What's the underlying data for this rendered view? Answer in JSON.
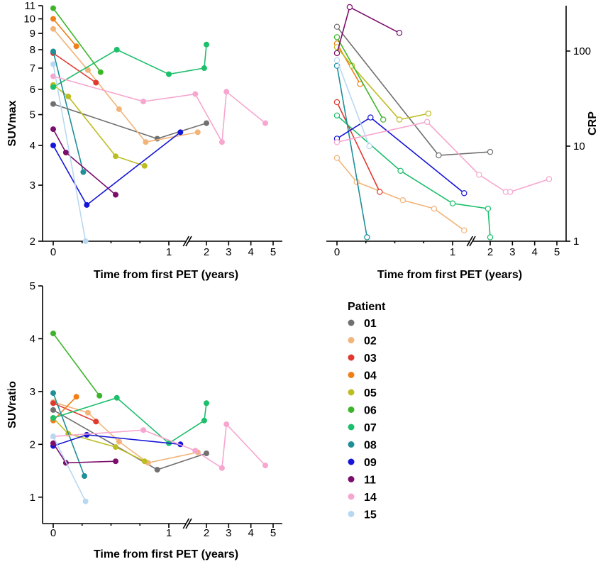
{
  "legend": {
    "title": "Patient",
    "entries": [
      {
        "label": "01",
        "color": "#707070"
      },
      {
        "label": "02",
        "color": "#f2b479"
      },
      {
        "label": "03",
        "color": "#e03a2f"
      },
      {
        "label": "04",
        "color": "#f07f16"
      },
      {
        "label": "05",
        "color": "#bcbd22"
      },
      {
        "label": "06",
        "color": "#3cb52a"
      },
      {
        "label": "07",
        "color": "#1cbf6b"
      },
      {
        "label": "08",
        "color": "#1f8f98"
      },
      {
        "label": "09",
        "color": "#1515d8"
      },
      {
        "label": "11",
        "color": "#7b0e6b"
      },
      {
        "label": "14",
        "color": "#f7a6cf"
      },
      {
        "label": "15",
        "color": "#b8d8f2"
      }
    ]
  },
  "chart_data": [
    {
      "type": "line",
      "ylabel": "SUVmax",
      "xlabel": "Time from first PET (years)",
      "y_scale": "log",
      "ylim": [
        2,
        11
      ],
      "y_ticks": [
        "2",
        "3",
        "4",
        "5",
        "6",
        "7",
        "8",
        "9",
        "10",
        "11"
      ],
      "x_axis": "broken: 0-1 then 2-5 (years)",
      "x_ticks": [
        "0",
        "1",
        "2",
        "3",
        "4",
        "5"
      ],
      "marker": "filled",
      "series": [
        {
          "name": "01",
          "x": [
            0,
            0.9,
            2.0
          ],
          "y": [
            5.4,
            4.2,
            4.7
          ]
        },
        {
          "name": "02",
          "x": [
            0,
            0.3,
            0.57,
            0.8,
            1.25
          ],
          "y": [
            9.3,
            6.9,
            5.2,
            4.1,
            4.4
          ]
        },
        {
          "name": "03",
          "x": [
            0,
            0.37
          ],
          "y": [
            7.8,
            6.3
          ]
        },
        {
          "name": "04",
          "x": [
            0,
            0.2
          ],
          "y": [
            10.0,
            8.2
          ]
        },
        {
          "name": "05",
          "x": [
            0,
            0.13,
            0.54,
            0.79
          ],
          "y": [
            6.2,
            5.7,
            3.7,
            3.45
          ]
        },
        {
          "name": "06",
          "x": [
            0,
            0.41
          ],
          "y": [
            10.8,
            6.8
          ]
        },
        {
          "name": "07",
          "x": [
            0,
            0.55,
            1.0,
            1.9,
            2.0
          ],
          "y": [
            6.1,
            8.0,
            6.7,
            7.0,
            8.3
          ]
        },
        {
          "name": "08",
          "x": [
            0,
            0.26
          ],
          "y": [
            7.9,
            3.3
          ]
        },
        {
          "name": "09",
          "x": [
            0,
            0.29,
            1.1
          ],
          "y": [
            4.0,
            2.6,
            4.4
          ]
        },
        {
          "name": "11",
          "x": [
            0,
            0.11,
            0.54
          ],
          "y": [
            4.5,
            3.8,
            2.8
          ]
        },
        {
          "name": "14",
          "x": [
            0,
            0.78,
            1.5,
            2.7,
            2.9,
            4.65
          ],
          "y": [
            6.6,
            5.5,
            5.8,
            4.1,
            5.9,
            4.7
          ]
        },
        {
          "name": "15",
          "x": [
            0,
            0.28
          ],
          "y": [
            7.2,
            2.0
          ]
        }
      ]
    },
    {
      "type": "line",
      "ylabel": "CRP",
      "xlabel": "Time from first PET (years)",
      "y_scale": "log",
      "ylim": [
        1,
        300
      ],
      "y_ticks": [
        "1",
        "10",
        "100"
      ],
      "y_axis_position": "right",
      "x_axis": "broken: 0-1 then 2-5 (years)",
      "x_ticks": [
        "0",
        "1",
        "2",
        "3",
        "4",
        "5"
      ],
      "marker": "open",
      "series": [
        {
          "name": "01",
          "x": [
            0,
            0.88,
            2.0
          ],
          "y": [
            180,
            8,
            8.7
          ]
        },
        {
          "name": "02",
          "x": [
            0,
            0.17,
            0.57,
            0.84,
            1.1
          ],
          "y": [
            7.5,
            4.2,
            2.7,
            2.2,
            1.3
          ]
        },
        {
          "name": "03",
          "x": [
            0,
            0.37
          ],
          "y": [
            29,
            3.3
          ]
        },
        {
          "name": "04",
          "x": [
            0,
            0.2
          ],
          "y": [
            120,
            45
          ]
        },
        {
          "name": "05",
          "x": [
            0,
            0.13,
            0.54,
            0.79
          ],
          "y": [
            110,
            70,
            19,
            22
          ]
        },
        {
          "name": "06",
          "x": [
            0,
            0.4
          ],
          "y": [
            140,
            19
          ]
        },
        {
          "name": "07",
          "x": [
            0,
            0.55,
            1.0,
            1.9,
            2.0
          ],
          "y": [
            21,
            5.5,
            2.5,
            2.2,
            1.1
          ]
        },
        {
          "name": "08",
          "x": [
            0,
            0.26
          ],
          "y": [
            70,
            1.1
          ]
        },
        {
          "name": "09",
          "x": [
            0,
            0.29,
            1.1
          ],
          "y": [
            12,
            20,
            3.2
          ]
        },
        {
          "name": "11",
          "x": [
            0,
            0.11,
            0.54
          ],
          "y": [
            95,
            290,
            155
          ]
        },
        {
          "name": "14",
          "x": [
            0,
            0.78,
            1.5,
            2.7,
            2.9,
            4.65
          ],
          "y": [
            11,
            18,
            5,
            3.3,
            3.3,
            4.5
          ]
        },
        {
          "name": "15",
          "x": [
            0,
            0.28
          ],
          "y": [
            80,
            10
          ]
        }
      ]
    },
    {
      "type": "line",
      "ylabel": "SUVratio",
      "xlabel": "Time from first PET (years)",
      "y_scale": "linear",
      "ylim": [
        0.5,
        5
      ],
      "y_ticks": [
        "1",
        "2",
        "3",
        "4",
        "5"
      ],
      "x_axis": "broken: 0-1 then 2-5 (years)",
      "x_ticks": [
        "0",
        "1",
        "2",
        "3",
        "4",
        "5"
      ],
      "marker": "filled",
      "series": [
        {
          "name": "01",
          "x": [
            0,
            0.9,
            2.0
          ],
          "y": [
            2.65,
            1.52,
            1.83
          ]
        },
        {
          "name": "02",
          "x": [
            0,
            0.3,
            0.57,
            0.82,
            1.25
          ],
          "y": [
            2.8,
            2.6,
            2.05,
            1.65,
            1.85
          ]
        },
        {
          "name": "03",
          "x": [
            0,
            0.37
          ],
          "y": [
            2.78,
            2.43
          ]
        },
        {
          "name": "04",
          "x": [
            0,
            0.2
          ],
          "y": [
            2.45,
            2.9
          ]
        },
        {
          "name": "05",
          "x": [
            0,
            0.13,
            0.54,
            0.79
          ],
          "y": [
            2.5,
            2.2,
            1.95,
            1.68
          ]
        },
        {
          "name": "06",
          "x": [
            0,
            0.4
          ],
          "y": [
            4.1,
            2.92
          ]
        },
        {
          "name": "07",
          "x": [
            0,
            0.55,
            1.0,
            1.9,
            2.0
          ],
          "y": [
            2.5,
            2.88,
            2.02,
            2.45,
            2.78
          ]
        },
        {
          "name": "08",
          "x": [
            0,
            0.27
          ],
          "y": [
            2.97,
            1.4
          ]
        },
        {
          "name": "09",
          "x": [
            0,
            0.29,
            1.1
          ],
          "y": [
            1.97,
            2.18,
            2.0
          ]
        },
        {
          "name": "11",
          "x": [
            0,
            0.11,
            0.54
          ],
          "y": [
            2.02,
            1.65,
            1.68
          ]
        },
        {
          "name": "14",
          "x": [
            0,
            0.78,
            1.5,
            2.7,
            2.9,
            4.65
          ],
          "y": [
            2.15,
            2.27,
            1.88,
            1.55,
            2.38,
            1.6
          ]
        },
        {
          "name": "15",
          "x": [
            0,
            0.28
          ],
          "y": [
            2.15,
            0.92
          ]
        }
      ]
    }
  ]
}
